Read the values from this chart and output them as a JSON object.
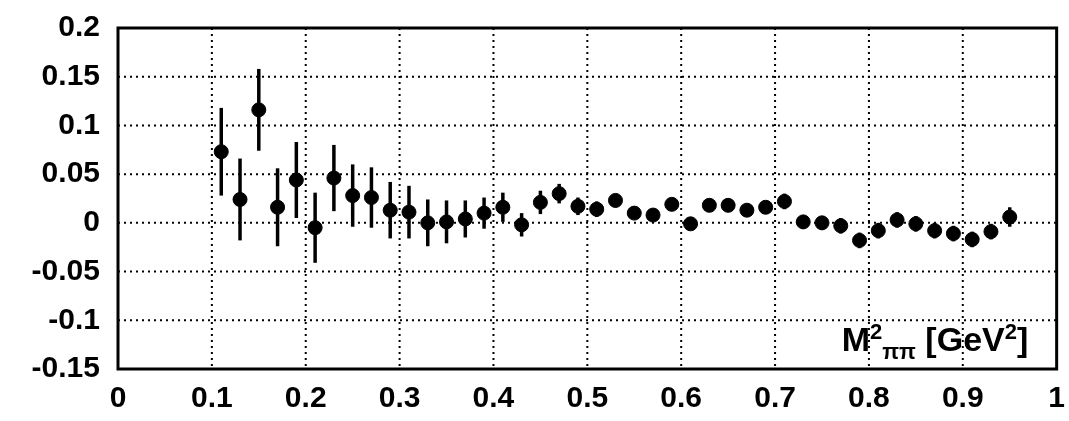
{
  "chart_data": {
    "type": "scatter",
    "xlabel": "M$^{2}$$_{ππ}$ [GeV$^{2}$]",
    "x": [
      0.11,
      0.13,
      0.15,
      0.17,
      0.19,
      0.21,
      0.23,
      0.25,
      0.27,
      0.29,
      0.31,
      0.33,
      0.35,
      0.37,
      0.39,
      0.41,
      0.43,
      0.45,
      0.47,
      0.49,
      0.51,
      0.53,
      0.55,
      0.57,
      0.59,
      0.61,
      0.63,
      0.65,
      0.67,
      0.69,
      0.71,
      0.73,
      0.75,
      0.77,
      0.79,
      0.81,
      0.83,
      0.85,
      0.87,
      0.89,
      0.91,
      0.93,
      0.95
    ],
    "series": [
      {
        "color": "#000000",
        "values": [
          0.073,
          0.024,
          0.116,
          0.016,
          0.044,
          -0.005,
          0.046,
          0.028,
          0.026,
          0.013,
          0.011,
          0.0,
          0.001,
          0.004,
          0.01,
          0.016,
          -0.002,
          0.021,
          0.03,
          0.017,
          0.014,
          0.023,
          0.01,
          0.008,
          0.019,
          -0.001,
          0.018,
          0.018,
          0.013,
          0.016,
          0.022,
          0.001,
          0.0,
          -0.003,
          -0.018,
          -0.008,
          0.003,
          -0.001,
          -0.008,
          -0.011,
          -0.017,
          -0.009,
          0.006
        ],
        "errors": [
          0.045,
          0.042,
          0.042,
          0.04,
          0.039,
          0.036,
          0.034,
          0.032,
          0.031,
          0.029,
          0.027,
          0.024,
          0.022,
          0.019,
          0.016,
          0.015,
          0.012,
          0.012,
          0.01,
          0.009,
          0.008,
          0.007,
          0.006,
          0.006,
          0.005,
          0.005,
          0.006,
          0.006,
          0.006,
          0.006,
          0.008,
          0.007,
          0.007,
          0.008,
          0.008,
          0.008,
          0.008,
          0.008,
          0.008,
          0.008,
          0.008,
          0.008,
          0.01
        ]
      }
    ],
    "xlim": [
      0,
      1
    ],
    "xticks": [
      0,
      0.1,
      0.2,
      0.3,
      0.4,
      0.5,
      0.6,
      0.7,
      0.8,
      0.9,
      1
    ],
    "ylim": [
      -0.15,
      0.2
    ],
    "yticks": [
      -0.15,
      -0.1,
      -0.05,
      0,
      0.05,
      0.1,
      0.15,
      0.2
    ],
    "grid": true,
    "legend": false,
    "marker": "circle"
  }
}
